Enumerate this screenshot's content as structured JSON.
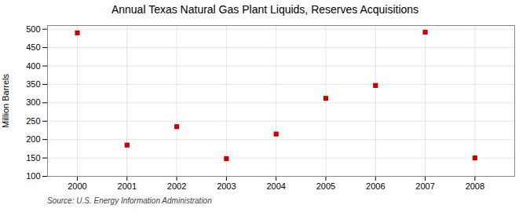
{
  "chart_data": {
    "type": "scatter",
    "title": "Annual Texas Natural Gas Plant Liquids, Reserves Acquisitions",
    "ylabel": "Million Barrels",
    "source": "Source: U.S. Energy Information Administration",
    "x": [
      2000,
      2001,
      2002,
      2003,
      2004,
      2005,
      2006,
      2007,
      2008
    ],
    "values": [
      490,
      185,
      235,
      148,
      215,
      312,
      347,
      492,
      150
    ],
    "color": "#cc0000",
    "marker": "square",
    "xlim": [
      1999.4,
      2008.8
    ],
    "xticks": [
      2000,
      2001,
      2002,
      2003,
      2004,
      2005,
      2006,
      2007,
      2008
    ],
    "ylim": [
      100,
      510
    ],
    "yticks": [
      100,
      150,
      200,
      250,
      300,
      350,
      400,
      450,
      500
    ],
    "grid": true
  }
}
